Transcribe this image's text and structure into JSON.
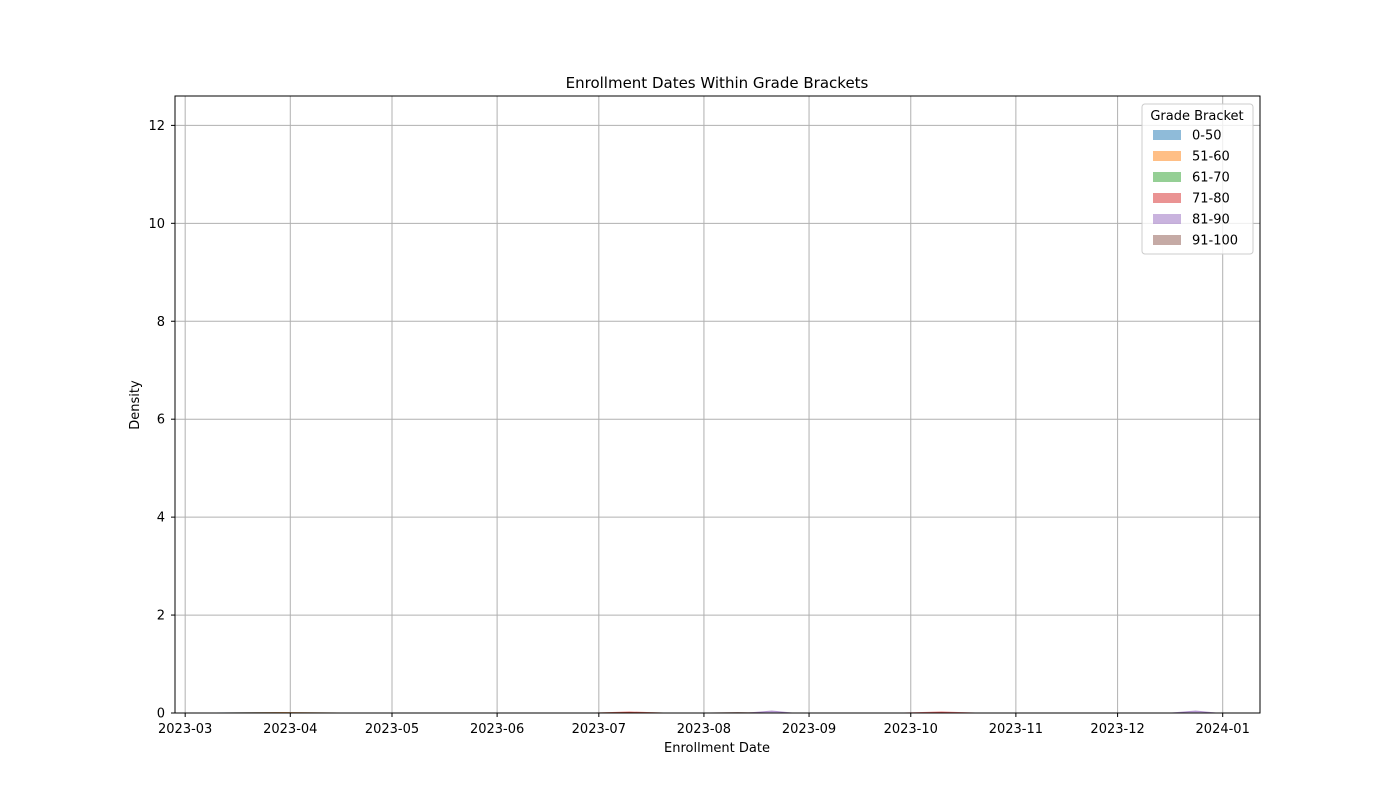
{
  "chart_data": {
    "type": "area",
    "title": "Enrollment Dates Within Grade Brackets",
    "xlabel": "Enrollment Date",
    "ylabel": "Density",
    "xlim": [
      "2023-02-26",
      "2024-01-12"
    ],
    "ylim": [
      0,
      12.6
    ],
    "x_ticks": [
      "2023-03",
      "2023-04",
      "2023-05",
      "2023-06",
      "2023-07",
      "2023-08",
      "2023-09",
      "2023-10",
      "2023-11",
      "2023-12",
      "2024-01"
    ],
    "y_ticks": [
      0,
      2,
      4,
      6,
      8,
      10,
      12
    ],
    "grid": true,
    "legend": {
      "title": "Grade Bracket",
      "position": "top-right"
    },
    "series": [
      {
        "name": "0-50",
        "color": "#1f77b4",
        "x": [
          "2023-03-10",
          "2023-03-28",
          "2023-04-15"
        ],
        "y": [
          0,
          0.01,
          0
        ]
      },
      {
        "name": "51-60",
        "color": "#ff7f0e",
        "x": [
          "2023-03-12",
          "2023-03-30",
          "2023-04-16"
        ],
        "y": [
          0,
          0.01,
          0
        ]
      },
      {
        "name": "61-70",
        "color": "#2ca02c",
        "x": [
          "2023-06-30",
          "2023-07-10",
          "2023-07-20"
        ],
        "y": [
          0,
          0.01,
          0
        ]
      },
      {
        "name": "71-80",
        "color": "#d62728",
        "x": [
          "2023-06-30",
          "2023-07-10",
          "2023-07-20",
          "2023-09-29",
          "2023-10-10",
          "2023-10-20"
        ],
        "y": [
          0,
          0.02,
          0,
          0,
          0.02,
          0
        ]
      },
      {
        "name": "81-90",
        "color": "#9467bd",
        "x": [
          "2023-08-14",
          "2023-08-21",
          "2023-08-27",
          "2023-12-17",
          "2023-12-24",
          "2023-12-30"
        ],
        "y": [
          0,
          0.04,
          0,
          0,
          0.04,
          0
        ]
      },
      {
        "name": "91-100",
        "color": "#8c564b",
        "x": [
          "2023-08-03",
          "2023-08-11",
          "2023-08-19"
        ],
        "y": [
          0,
          0.01,
          0
        ]
      }
    ]
  }
}
